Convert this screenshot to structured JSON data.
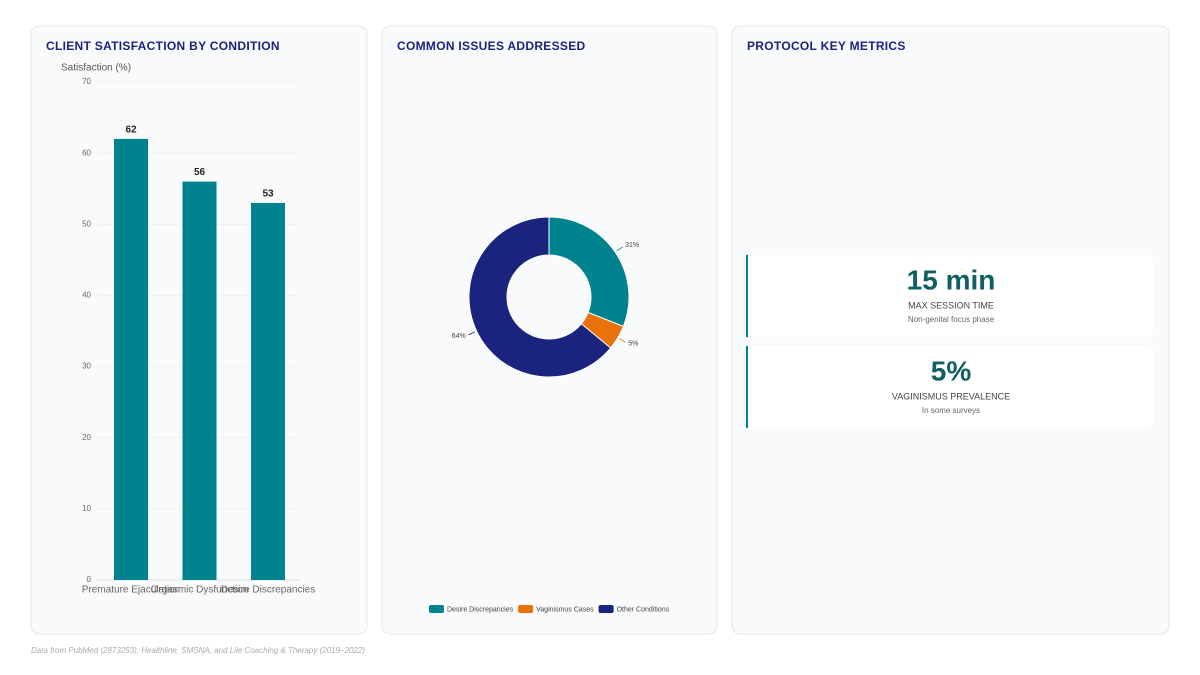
{
  "chart_data": [
    {
      "type": "bar",
      "title": "CLIENT SATISFACTION BY CONDITION",
      "y_label": "Satisfaction (%)",
      "categories": [
        "Premature Ejaculation",
        "Orgasmic Dysfunction",
        "Desire Discrepancies"
      ],
      "values": [
        62,
        56,
        53
      ],
      "color": "#00838f",
      "ylim": [
        0,
        70
      ],
      "yticks": [
        0,
        10,
        20,
        30,
        40,
        50,
        60,
        70
      ],
      "grid": true
    },
    {
      "type": "pie",
      "title": "COMMON ISSUES ADDRESSED",
      "categories": [
        "Desire Discrepancies",
        "Vaginismus Cases",
        "Other Conditions"
      ],
      "values": [
        31,
        5,
        64
      ],
      "value_labels": [
        "31%",
        "5%",
        "64%"
      ],
      "colors": [
        "#00838f",
        "#e8710a",
        "#1a237e"
      ],
      "legend": "bottom"
    }
  ],
  "metrics": {
    "title": "PROTOCOL KEY METRICS",
    "items": [
      {
        "value": "15 min",
        "label": "MAX SESSION TIME",
        "note": "Non-genital focus phase"
      },
      {
        "value": "5%",
        "label": "VAGINISMUS PREVALENCE",
        "note": "In some surveys"
      }
    ]
  },
  "footer": "Data from PubMed (2873253), Healthline, SMSNA, and Lile Coaching & Therapy (2019–2022)"
}
